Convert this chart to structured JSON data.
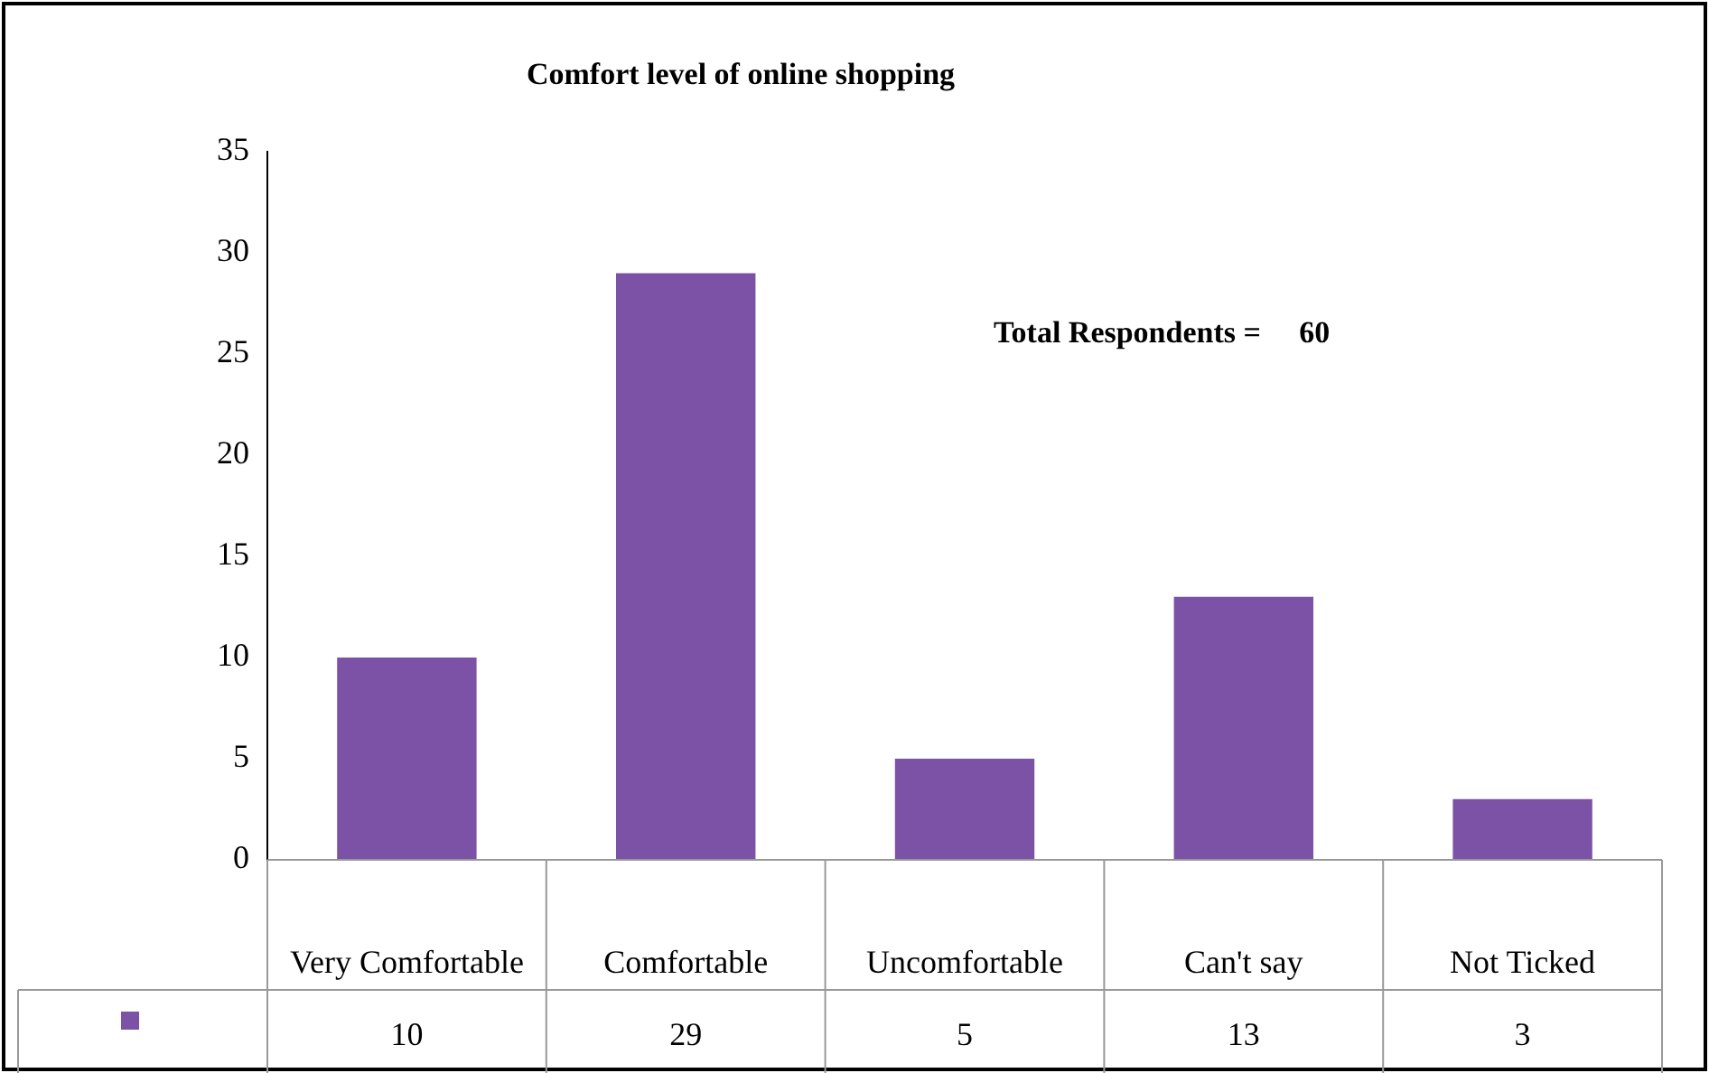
{
  "chart_data": {
    "type": "bar",
    "title": "Comfort level of online shopping",
    "categories": [
      "Very Comfortable",
      "Comfortable",
      "Uncomfortable",
      "Can't say",
      "Not Ticked"
    ],
    "values": [
      10,
      29,
      5,
      13,
      3
    ],
    "color": "#7b52a6",
    "ylim": [
      0,
      35
    ],
    "yticks": [
      0,
      5,
      10,
      15,
      20,
      25,
      30,
      35
    ],
    "grid": false,
    "legend": false,
    "data_labels": true,
    "annotations": [
      "Total Respondents =     60"
    ]
  }
}
